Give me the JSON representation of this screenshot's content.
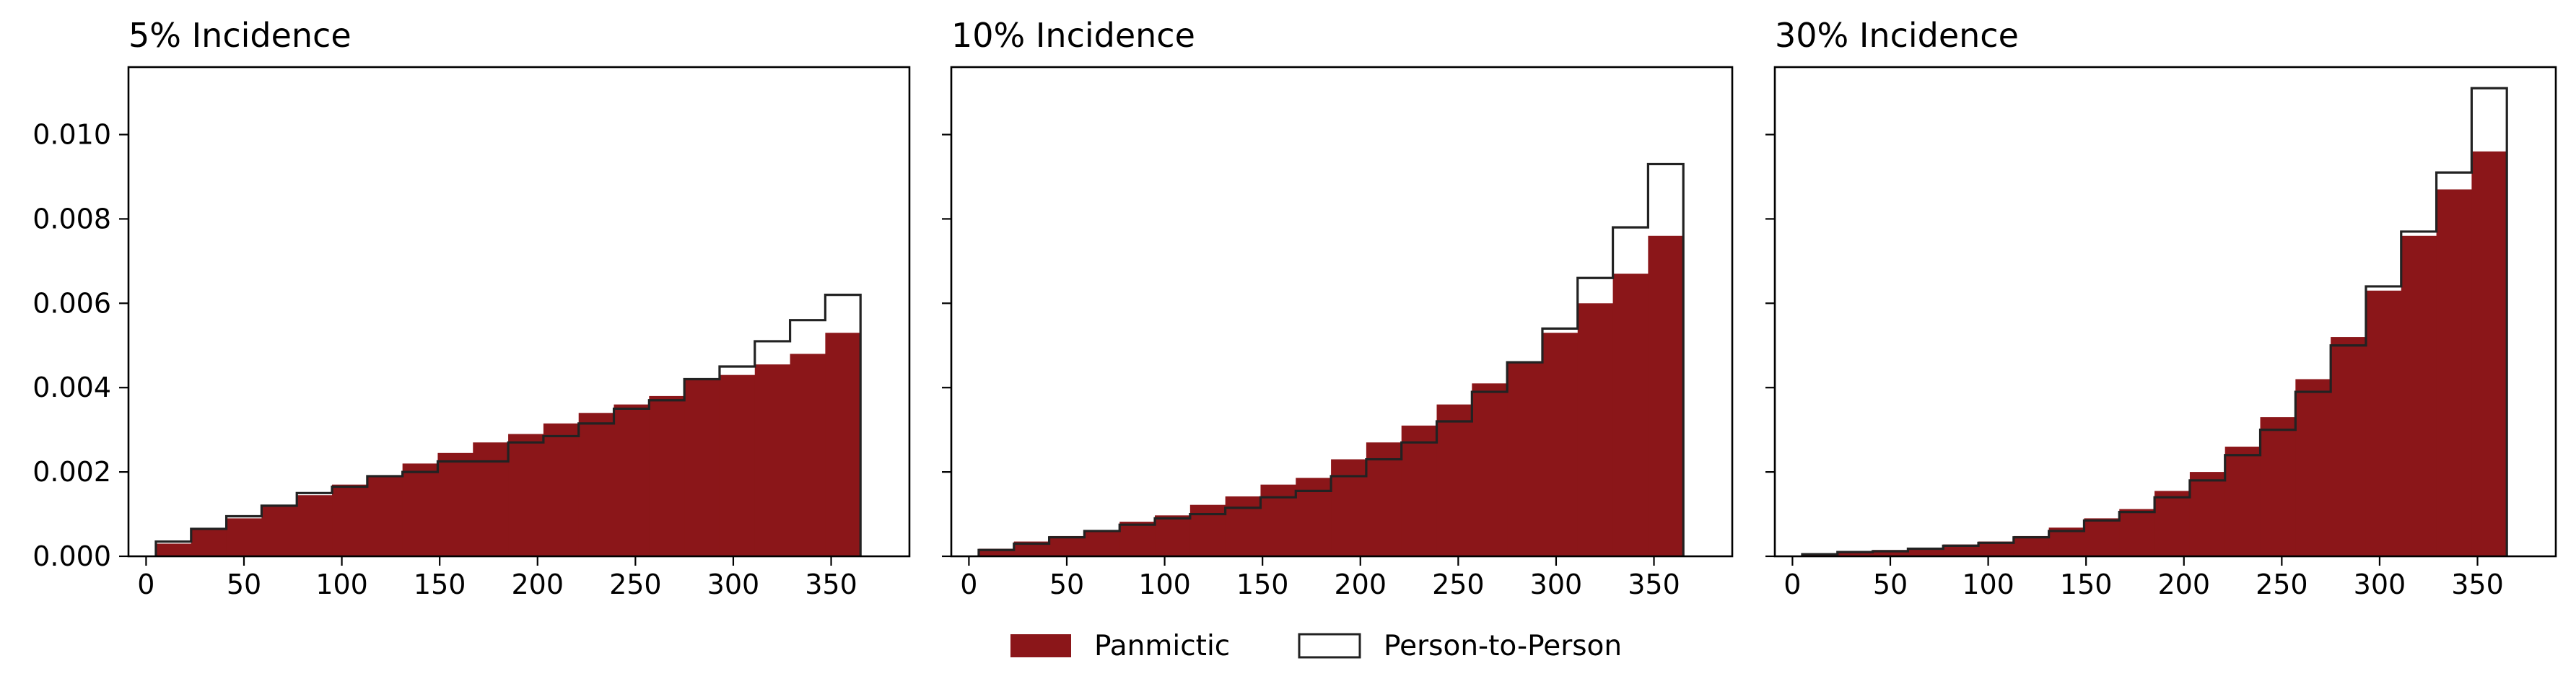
{
  "legend": {
    "placement": "bottom-center",
    "items": [
      {
        "label": "Panmictic",
        "style": "filled"
      },
      {
        "label": "Person-to-Person",
        "style": "outline"
      }
    ]
  },
  "colors": {
    "panmictic_fill": "#8b1619",
    "person_to_person_edge": "#222222",
    "axes": "#000000"
  },
  "chart_data": [
    {
      "type": "histogram",
      "title": "5% Incidence",
      "xlabel": "",
      "ylabel": "",
      "xlim": [
        -9,
        390
      ],
      "ylim": [
        0,
        0.0116
      ],
      "x_ticks": [
        0,
        50,
        100,
        150,
        200,
        250,
        300,
        350
      ],
      "y_ticks": [
        0.0,
        0.002,
        0.004,
        0.006,
        0.008,
        0.01
      ],
      "y_tick_labels": [
        "0.000",
        "0.002",
        "0.004",
        "0.006",
        "0.008",
        "0.010"
      ],
      "grid": false,
      "bin_edges": [
        5,
        23,
        41,
        59,
        77,
        95,
        113,
        131,
        149,
        167,
        185,
        203,
        221,
        239,
        257,
        275,
        293,
        311,
        329,
        347,
        365
      ],
      "series": [
        {
          "name": "Panmictic",
          "histtype": "filled",
          "values": [
            0.0003,
            0.00065,
            0.0009,
            0.0012,
            0.00145,
            0.0017,
            0.0019,
            0.0022,
            0.00245,
            0.0027,
            0.0029,
            0.00315,
            0.0034,
            0.0036,
            0.0038,
            0.0042,
            0.0043,
            0.00455,
            0.0048,
            0.0053
          ]
        },
        {
          "name": "Person-to-Person",
          "histtype": "step",
          "values": [
            0.00035,
            0.00065,
            0.00095,
            0.0012,
            0.0015,
            0.00165,
            0.0019,
            0.002,
            0.00225,
            0.00225,
            0.0027,
            0.00285,
            0.00315,
            0.0035,
            0.0037,
            0.0042,
            0.0045,
            0.0051,
            0.0056,
            0.0062
          ]
        }
      ]
    },
    {
      "type": "histogram",
      "title": "10% Incidence",
      "xlabel": "",
      "ylabel": "",
      "xlim": [
        -9,
        390
      ],
      "ylim": [
        0,
        0.0116
      ],
      "x_ticks": [
        0,
        50,
        100,
        150,
        200,
        250,
        300,
        350
      ],
      "y_ticks": [
        0.0,
        0.002,
        0.004,
        0.006,
        0.008,
        0.01
      ],
      "grid": false,
      "bin_edges": [
        5,
        23,
        41,
        59,
        77,
        95,
        113,
        131,
        149,
        167,
        185,
        203,
        221,
        239,
        257,
        275,
        293,
        311,
        329,
        347,
        365
      ],
      "series": [
        {
          "name": "Panmictic",
          "histtype": "filled",
          "values": [
            0.00018,
            0.00035,
            0.00048,
            0.00062,
            0.00082,
            0.00097,
            0.00122,
            0.00142,
            0.0017,
            0.00186,
            0.0023,
            0.0027,
            0.0031,
            0.0036,
            0.0041,
            0.0046,
            0.0053,
            0.006,
            0.0067,
            0.0076
          ]
        },
        {
          "name": "Person-to-Person",
          "histtype": "step",
          "values": [
            0.00015,
            0.0003,
            0.00045,
            0.0006,
            0.00075,
            0.0009,
            0.001,
            0.00115,
            0.0014,
            0.00155,
            0.0019,
            0.0023,
            0.0027,
            0.0032,
            0.0039,
            0.0046,
            0.0054,
            0.0066,
            0.0078,
            0.0093
          ]
        }
      ]
    },
    {
      "type": "histogram",
      "title": "30% Incidence",
      "xlabel": "",
      "ylabel": "",
      "xlim": [
        -9,
        390
      ],
      "ylim": [
        0,
        0.0116
      ],
      "x_ticks": [
        0,
        50,
        100,
        150,
        200,
        250,
        300,
        350
      ],
      "y_ticks": [
        0.0,
        0.002,
        0.004,
        0.006,
        0.008,
        0.01
      ],
      "grid": false,
      "bin_edges": [
        5,
        23,
        41,
        59,
        77,
        95,
        113,
        131,
        149,
        167,
        185,
        203,
        221,
        239,
        257,
        275,
        293,
        311,
        329,
        347,
        365
      ],
      "series": [
        {
          "name": "Panmictic",
          "histtype": "filled",
          "values": [
            5e-05,
            0.0001,
            0.00015,
            0.0002,
            0.00028,
            0.00035,
            0.00048,
            0.00068,
            0.0009,
            0.00112,
            0.00155,
            0.002,
            0.0026,
            0.0033,
            0.0042,
            0.0052,
            0.0063,
            0.0076,
            0.0087,
            0.0096
          ]
        },
        {
          "name": "Person-to-Person",
          "histtype": "step",
          "values": [
            5e-05,
            0.0001,
            0.00012,
            0.00018,
            0.00025,
            0.00032,
            0.00045,
            0.0006,
            0.00085,
            0.00105,
            0.0014,
            0.0018,
            0.0024,
            0.003,
            0.0039,
            0.005,
            0.0064,
            0.0077,
            0.0091,
            0.0111
          ]
        }
      ]
    }
  ]
}
